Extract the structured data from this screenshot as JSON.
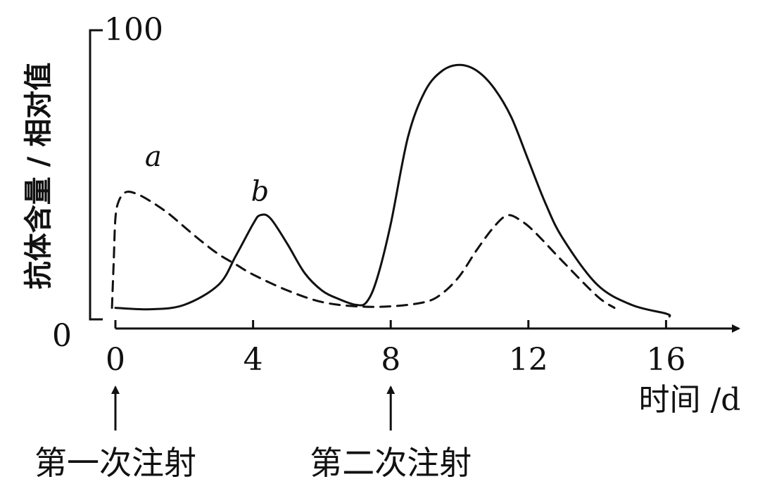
{
  "chart_data": {
    "type": "line",
    "title": "",
    "xlabel": "时间 /d",
    "ylabel": "抗体含量 / 相对值",
    "xlim": [
      0,
      18
    ],
    "ylim": [
      0,
      100
    ],
    "x_ticks": [
      {
        "value": 0,
        "label": "0"
      },
      {
        "value": 4,
        "label": "4"
      },
      {
        "value": 8,
        "label": "8"
      },
      {
        "value": 12,
        "label": "12"
      },
      {
        "value": 16,
        "label": "16"
      }
    ],
    "y_ticks": [
      {
        "value": 0,
        "label": "0"
      },
      {
        "value": 100,
        "label": "100"
      }
    ],
    "grid": false,
    "series": [
      {
        "name": "a",
        "style": "dashed",
        "points": [
          [
            -0.1,
            4
          ],
          [
            -0.05,
            20
          ],
          [
            0.0,
            35
          ],
          [
            0.1,
            41
          ],
          [
            0.3,
            44
          ],
          [
            0.6,
            43.5
          ],
          [
            1.0,
            41
          ],
          [
            1.5,
            37
          ],
          [
            2.0,
            32
          ],
          [
            2.5,
            27
          ],
          [
            3.0,
            22.5
          ],
          [
            3.5,
            19
          ],
          [
            4.0,
            15.5
          ],
          [
            5.0,
            10
          ],
          [
            6.0,
            6
          ],
          [
            7.0,
            4.5
          ],
          [
            8.0,
            4.5
          ],
          [
            9.0,
            6
          ],
          [
            9.5,
            9
          ],
          [
            10.0,
            15
          ],
          [
            10.5,
            24
          ],
          [
            11.0,
            32
          ],
          [
            11.4,
            36
          ],
          [
            11.8,
            34
          ],
          [
            12.2,
            30
          ],
          [
            13.0,
            20
          ],
          [
            14.0,
            8
          ],
          [
            14.5,
            4
          ]
        ],
        "annotation": {
          "text": "a",
          "x": 1.1,
          "y": 53
        }
      },
      {
        "name": "b",
        "style": "solid",
        "points": [
          [
            0.0,
            4
          ],
          [
            1.0,
            3.5
          ],
          [
            2.0,
            5
          ],
          [
            3.0,
            12
          ],
          [
            3.5,
            22
          ],
          [
            4.0,
            33
          ],
          [
            4.2,
            36
          ],
          [
            4.5,
            35
          ],
          [
            5.0,
            26
          ],
          [
            5.5,
            16
          ],
          [
            6.0,
            10
          ],
          [
            6.5,
            7
          ],
          [
            7.0,
            5
          ],
          [
            7.3,
            6
          ],
          [
            7.6,
            14
          ],
          [
            8.0,
            33
          ],
          [
            8.5,
            63
          ],
          [
            9.0,
            79
          ],
          [
            9.5,
            86
          ],
          [
            10.0,
            88
          ],
          [
            10.5,
            86
          ],
          [
            11.0,
            80
          ],
          [
            11.5,
            70
          ],
          [
            12.0,
            55
          ],
          [
            12.5,
            40
          ],
          [
            13.0,
            28
          ],
          [
            14.0,
            12
          ],
          [
            15.0,
            5
          ],
          [
            16.0,
            2
          ],
          [
            16.1,
            1
          ]
        ],
        "annotation": {
          "text": "b",
          "x": 4.2,
          "y": 41
        }
      }
    ],
    "injections": [
      {
        "x": 0,
        "label": "第一次注射"
      },
      {
        "x": 8,
        "label": "第二次注射"
      }
    ]
  }
}
